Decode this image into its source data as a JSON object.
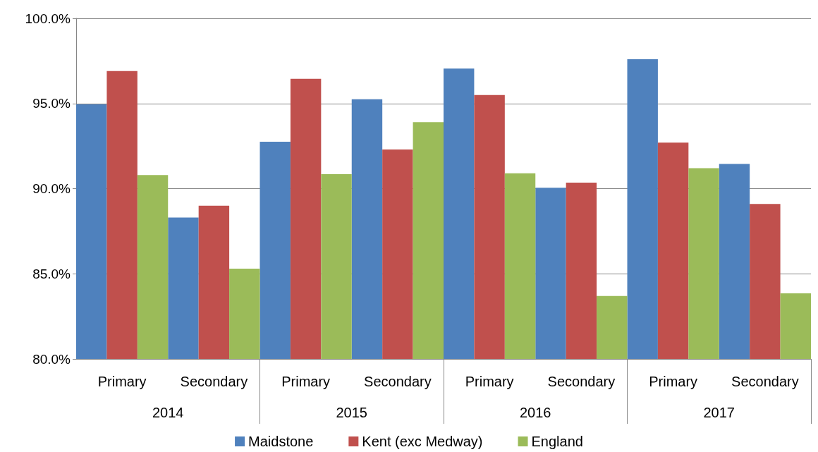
{
  "chart_data": {
    "type": "bar",
    "categories": [
      "Primary",
      "Secondary",
      "Primary",
      "Secondary",
      "Primary",
      "Secondary",
      "Primary",
      "Secondary"
    ],
    "annotations": [
      "2014",
      "2015",
      "2016",
      "2017"
    ],
    "series": [
      {
        "name": "Maidstone",
        "color": "#4f81bd",
        "values": [
          94.95,
          88.3,
          92.75,
          95.25,
          97.05,
          90.05,
          97.6,
          91.45
        ]
      },
      {
        "name": "Kent (exc Medway)",
        "color": "#c0504d",
        "values": [
          96.9,
          89.0,
          96.45,
          92.3,
          95.5,
          90.35,
          92.7,
          89.1
        ]
      },
      {
        "name": "England",
        "color": "#9bbb59",
        "values": [
          90.8,
          85.3,
          90.85,
          93.9,
          90.9,
          83.7,
          91.2,
          83.85
        ]
      }
    ],
    "ylim": [
      80,
      100
    ],
    "yticks": [
      {
        "value": 80,
        "label": "80.0%"
      },
      {
        "value": 85,
        "label": "85.0%"
      },
      {
        "value": 90,
        "label": "90.0%"
      },
      {
        "value": 95,
        "label": "95.0%"
      },
      {
        "value": 100,
        "label": "100.0%"
      }
    ],
    "grid": "y",
    "legend": "bottom"
  }
}
